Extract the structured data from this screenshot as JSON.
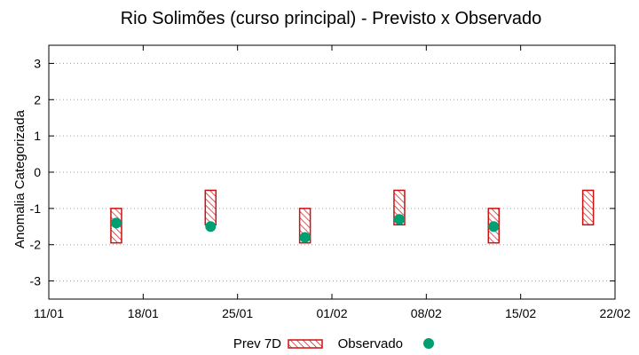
{
  "chart_data": {
    "type": "interval-scatter",
    "title": "Rio Solimões (curso principal) - Previsto x Observado",
    "xlabel": "",
    "ylabel": "Anomalia Categorizada",
    "ylim": [
      -3.5,
      3.5
    ],
    "yticks": [
      3,
      2,
      1,
      0,
      -1,
      -2,
      -3
    ],
    "xlim_days": [
      0,
      42
    ],
    "xticks": [
      {
        "day": 0,
        "label": "11/01"
      },
      {
        "day": 7,
        "label": "18/01"
      },
      {
        "day": 14,
        "label": "25/01"
      },
      {
        "day": 21,
        "label": "01/02"
      },
      {
        "day": 28,
        "label": "08/02"
      },
      {
        "day": 35,
        "label": "15/02"
      },
      {
        "day": 42,
        "label": "22/02"
      }
    ],
    "grid": true,
    "series": [
      {
        "name": "Prev 7D",
        "kind": "interval",
        "color": "#cc1111",
        "points": [
          {
            "day": 5,
            "low": -1.95,
            "high": -1.0
          },
          {
            "day": 12,
            "low": -1.45,
            "high": -0.5
          },
          {
            "day": 19,
            "low": -1.95,
            "high": -1.0
          },
          {
            "day": 26,
            "low": -1.45,
            "high": -0.5
          },
          {
            "day": 33,
            "low": -1.95,
            "high": -1.0
          },
          {
            "day": 40,
            "low": -1.45,
            "high": -0.5
          }
        ]
      },
      {
        "name": "Observado",
        "kind": "point",
        "color": "#009e73",
        "points": [
          {
            "day": 5,
            "value": -1.4
          },
          {
            "day": 12,
            "value": -1.5
          },
          {
            "day": 19,
            "value": -1.8
          },
          {
            "day": 26,
            "value": -1.3
          },
          {
            "day": 33,
            "value": -1.5
          }
        ]
      }
    ],
    "legend": {
      "position": "bottom-center"
    }
  }
}
